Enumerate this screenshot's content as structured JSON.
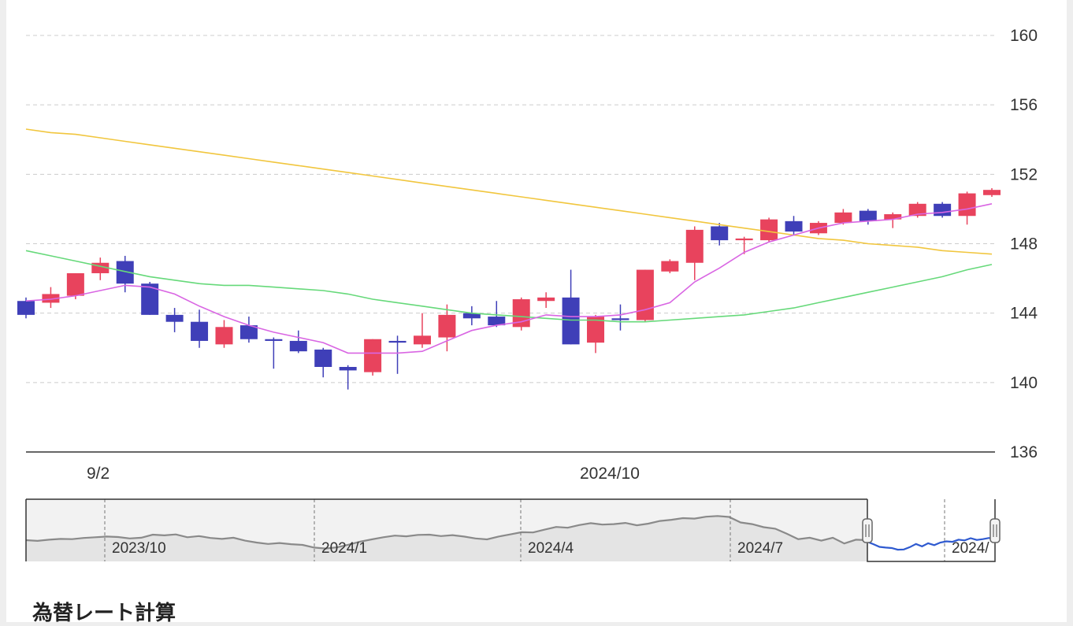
{
  "chart_data": {
    "type": "candlestick",
    "y_ticks": [
      160,
      156,
      152,
      148,
      144,
      140,
      136
    ],
    "ylim": [
      136,
      160
    ],
    "x_labels": [
      "9/2",
      "2024/10"
    ],
    "candles": [
      {
        "o": 144.7,
        "h": 144.9,
        "l": 143.7,
        "c": 143.9
      },
      {
        "o": 144.6,
        "h": 145.5,
        "l": 144.3,
        "c": 145.1
      },
      {
        "o": 145.0,
        "h": 146.3,
        "l": 144.8,
        "c": 146.3
      },
      {
        "o": 146.3,
        "h": 147.2,
        "l": 145.9,
        "c": 146.9
      },
      {
        "o": 147.0,
        "h": 147.3,
        "l": 145.2,
        "c": 145.7
      },
      {
        "o": 145.7,
        "h": 145.8,
        "l": 143.9,
        "c": 143.9
      },
      {
        "o": 143.9,
        "h": 144.3,
        "l": 142.9,
        "c": 143.5
      },
      {
        "o": 143.5,
        "h": 144.2,
        "l": 142.0,
        "c": 142.4
      },
      {
        "o": 142.2,
        "h": 143.6,
        "l": 142.0,
        "c": 143.2
      },
      {
        "o": 143.3,
        "h": 143.8,
        "l": 142.3,
        "c": 142.5
      },
      {
        "o": 142.5,
        "h": 142.6,
        "l": 140.8,
        "c": 142.4
      },
      {
        "o": 142.4,
        "h": 143.0,
        "l": 141.7,
        "c": 141.8
      },
      {
        "o": 141.9,
        "h": 142.0,
        "l": 140.3,
        "c": 140.9
      },
      {
        "o": 140.9,
        "h": 141.0,
        "l": 139.6,
        "c": 140.7
      },
      {
        "o": 140.6,
        "h": 142.5,
        "l": 140.4,
        "c": 142.5
      },
      {
        "o": 142.4,
        "h": 142.7,
        "l": 140.5,
        "c": 142.3
      },
      {
        "o": 142.2,
        "h": 144.0,
        "l": 142.0,
        "c": 142.7
      },
      {
        "o": 142.6,
        "h": 144.5,
        "l": 141.8,
        "c": 143.9
      },
      {
        "o": 144.0,
        "h": 144.4,
        "l": 143.3,
        "c": 143.7
      },
      {
        "o": 143.8,
        "h": 144.7,
        "l": 143.2,
        "c": 143.3
      },
      {
        "o": 143.2,
        "h": 144.9,
        "l": 143.0,
        "c": 144.8
      },
      {
        "o": 144.7,
        "h": 145.2,
        "l": 144.3,
        "c": 144.9
      },
      {
        "o": 144.9,
        "h": 146.5,
        "l": 142.2,
        "c": 142.2
      },
      {
        "o": 142.3,
        "h": 143.9,
        "l": 141.7,
        "c": 143.8
      },
      {
        "o": 143.7,
        "h": 144.5,
        "l": 143.0,
        "c": 143.6
      },
      {
        "o": 143.6,
        "h": 146.5,
        "l": 143.5,
        "c": 146.5
      },
      {
        "o": 146.4,
        "h": 147.1,
        "l": 146.3,
        "c": 147.0
      },
      {
        "o": 146.9,
        "h": 149.0,
        "l": 145.9,
        "c": 148.8
      },
      {
        "o": 149.0,
        "h": 149.2,
        "l": 147.9,
        "c": 148.2
      },
      {
        "o": 148.2,
        "h": 148.4,
        "l": 147.4,
        "c": 148.3
      },
      {
        "o": 148.2,
        "h": 149.5,
        "l": 148.1,
        "c": 149.4
      },
      {
        "o": 149.3,
        "h": 149.6,
        "l": 148.5,
        "c": 148.7
      },
      {
        "o": 148.6,
        "h": 149.3,
        "l": 148.5,
        "c": 149.2
      },
      {
        "o": 149.2,
        "h": 150.0,
        "l": 149.1,
        "c": 149.8
      },
      {
        "o": 149.9,
        "h": 150.0,
        "l": 149.1,
        "c": 149.3
      },
      {
        "o": 149.4,
        "h": 149.8,
        "l": 148.9,
        "c": 149.7
      },
      {
        "o": 149.6,
        "h": 150.4,
        "l": 149.5,
        "c": 150.3
      },
      {
        "o": 150.3,
        "h": 150.4,
        "l": 149.5,
        "c": 149.6
      },
      {
        "o": 149.6,
        "h": 151.0,
        "l": 149.1,
        "c": 150.9
      },
      {
        "o": 150.8,
        "h": 151.2,
        "l": 150.7,
        "c": 151.1
      }
    ],
    "ma_short": [
      144.7,
      144.8,
      145.0,
      145.3,
      145.6,
      145.5,
      145.1,
      144.4,
      143.8,
      143.3,
      142.9,
      142.6,
      142.3,
      141.7,
      141.7,
      141.7,
      141.8,
      142.4,
      143.0,
      143.3,
      143.5,
      143.9,
      143.8,
      143.8,
      143.9,
      144.2,
      144.6,
      145.8,
      146.6,
      147.5,
      148.1,
      148.5,
      148.9,
      149.2,
      149.3,
      149.4,
      149.7,
      149.8,
      150.0,
      150.3
    ],
    "ma_mid": [
      147.6,
      147.3,
      147.0,
      146.7,
      146.4,
      146.1,
      145.9,
      145.7,
      145.6,
      145.6,
      145.5,
      145.4,
      145.3,
      145.1,
      144.8,
      144.6,
      144.4,
      144.2,
      144.0,
      143.9,
      143.8,
      143.7,
      143.6,
      143.6,
      143.5,
      143.5,
      143.6,
      143.7,
      143.8,
      143.9,
      144.1,
      144.3,
      144.6,
      144.9,
      145.2,
      145.5,
      145.8,
      146.1,
      146.5,
      146.8
    ],
    "ma_long": [
      154.6,
      154.4,
      154.3,
      154.1,
      153.9,
      153.7,
      153.5,
      153.3,
      153.1,
      152.9,
      152.7,
      152.5,
      152.3,
      152.1,
      151.9,
      151.7,
      151.5,
      151.3,
      151.1,
      150.9,
      150.7,
      150.5,
      150.3,
      150.1,
      149.9,
      149.7,
      149.5,
      149.3,
      149.1,
      148.9,
      148.7,
      148.5,
      148.3,
      148.2,
      148.0,
      147.9,
      147.8,
      147.6,
      147.5,
      147.4
    ],
    "navigator": {
      "labels": [
        "2023/10",
        "2024/1",
        "2024/4",
        "2024/7",
        "2024/"
      ],
      "series": [
        144.9,
        144.6,
        145.1,
        145.4,
        145.3,
        145.8,
        146.1,
        146.4,
        146.2,
        145.6,
        145.9,
        147.2,
        146.9,
        147.3,
        146.1,
        146.6,
        145.8,
        145.4,
        145.9,
        144.7,
        143.9,
        143.3,
        143.7,
        143.2,
        142.9,
        141.8,
        141.4,
        141.9,
        143.0,
        144.3,
        145.2,
        146.1,
        146.8,
        146.5,
        147.1,
        147.2,
        146.6,
        147.0,
        146.4,
        145.6,
        145.2,
        146.4,
        147.3,
        148.2,
        148.1,
        149.3,
        150.4,
        150.1,
        151.2,
        152.0,
        151.4,
        151.6,
        152.1,
        151.1,
        151.8,
        152.9,
        153.4,
        154.1,
        153.9,
        154.7,
        155.0,
        154.6,
        152.3,
        151.6,
        150.3,
        149.7,
        147.6,
        145.3,
        145.9,
        144.7,
        145.9,
        143.5,
        145.1,
        144.9
      ],
      "selected_series": [
        144.2,
        143.2,
        142.1,
        141.8,
        141.6,
        140.9,
        141.0,
        142.0,
        143.3,
        142.3,
        143.6,
        142.8,
        143.9,
        144.4,
        144.2,
        145.1,
        144.8,
        145.7,
        145.0,
        145.3,
        145.8,
        145.2
      ]
    },
    "colors": {
      "up": "#e8435d",
      "down": "#3f3fb8",
      "ma_short": "#d966e3",
      "ma_mid": "#66d97a",
      "ma_long": "#f1c63e",
      "nav_line": "#8a8a8a",
      "nav_selected": "#2f5ad0"
    }
  },
  "section_title": "為替レート計算"
}
